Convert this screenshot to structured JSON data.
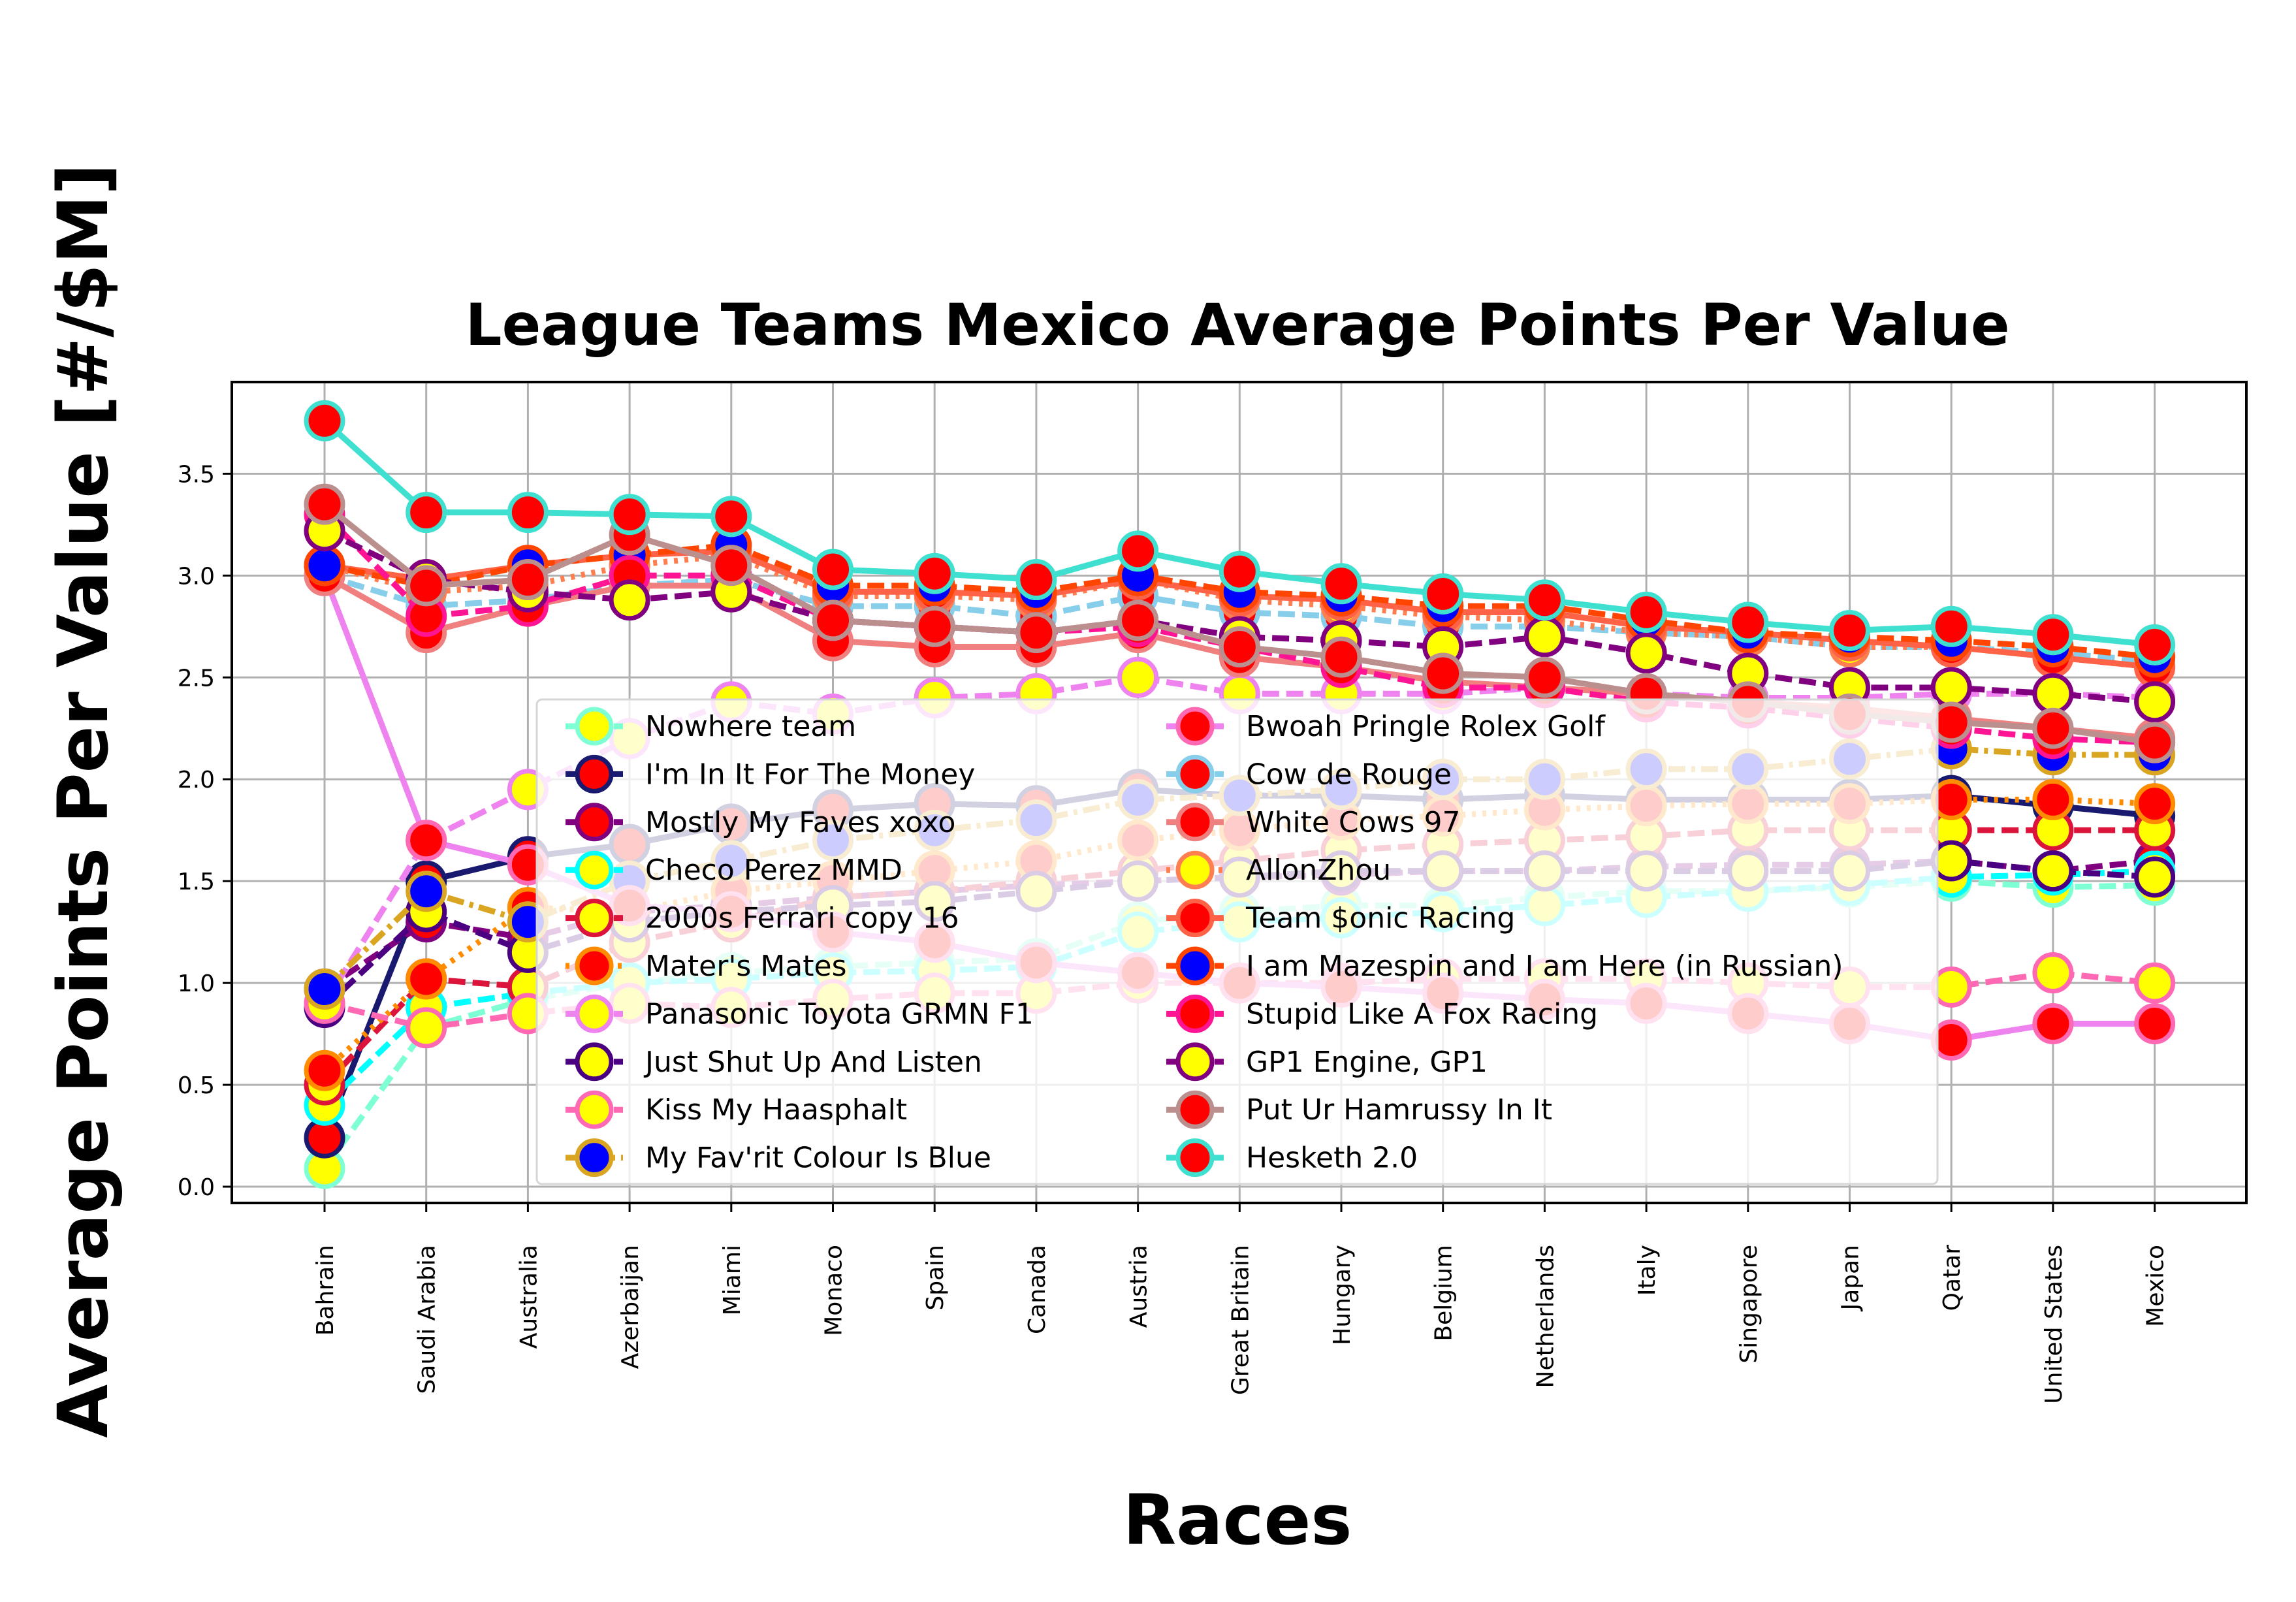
{
  "chart_data": {
    "type": "line",
    "title": "League Teams Mexico Average Points Per Value",
    "xlabel": "Races",
    "ylabel": "Average Points Per Value [#/$M]",
    "categories": [
      "Bahrain",
      "Saudi Arabia",
      "Australia",
      "Azerbaijan",
      "Miami",
      "Monaco",
      "Spain",
      "Canada",
      "Austria",
      "Great Britain",
      "Hungary",
      "Belgium",
      "Netherlands",
      "Italy",
      "Singapore",
      "Japan",
      "Qatar",
      "United States",
      "Mexico"
    ],
    "yticks": [
      "0.0",
      "0.5",
      "1.0",
      "1.5",
      "2.0",
      "2.5",
      "3.0",
      "3.5"
    ],
    "ylim": [
      -0.08,
      3.95
    ],
    "grid": true,
    "legend_location": "center",
    "series": [
      {
        "name": "Nowhere team",
        "line_color": "#7fffd4",
        "line_style": "dashed",
        "marker_face": "#ffff00",
        "marker_edge": "#7fffd4",
        "values": [
          0.09,
          0.78,
          0.92,
          1.0,
          1.05,
          1.08,
          1.1,
          1.12,
          1.3,
          1.35,
          1.38,
          1.38,
          1.42,
          1.45,
          1.45,
          1.47,
          1.5,
          1.47,
          1.48
        ]
      },
      {
        "name": "I'm In It For The Money",
        "line_color": "#191970",
        "line_style": "solid",
        "marker_face": "#ff0000",
        "marker_edge": "#191970",
        "values": [
          0.24,
          1.5,
          1.62,
          1.68,
          1.78,
          1.85,
          1.88,
          1.87,
          1.95,
          1.92,
          1.92,
          1.9,
          1.92,
          1.9,
          1.9,
          1.9,
          1.92,
          1.87,
          1.82
        ]
      },
      {
        "name": "Mostly My Faves xoxo",
        "line_color": "#800080",
        "line_style": "dashed",
        "marker_face": "#ff0000",
        "marker_edge": "#800080",
        "values": [
          0.97,
          1.3,
          1.22,
          1.35,
          1.38,
          1.42,
          1.45,
          1.48,
          1.5,
          1.52,
          1.53,
          1.55,
          1.55,
          1.57,
          1.58,
          1.58,
          1.6,
          1.55,
          1.6
        ]
      },
      {
        "name": "Checo Perez MMD",
        "line_color": "#00ffff",
        "line_style": "dashed",
        "marker_face": "#ffff00",
        "marker_edge": "#00ffff",
        "values": [
          0.4,
          0.88,
          0.95,
          1.0,
          1.02,
          1.05,
          1.06,
          1.08,
          1.25,
          1.3,
          1.32,
          1.35,
          1.38,
          1.42,
          1.45,
          1.48,
          1.52,
          1.53,
          1.55
        ]
      },
      {
        "name": "2000s Ferrari copy 16",
        "line_color": "#dc143c",
        "line_style": "dashed",
        "marker_face": "#ffff00",
        "marker_edge": "#dc143c",
        "values": [
          0.5,
          1.02,
          0.98,
          1.2,
          1.3,
          1.42,
          1.45,
          1.5,
          1.55,
          1.6,
          1.65,
          1.68,
          1.7,
          1.72,
          1.75,
          1.75,
          1.75,
          1.75,
          1.75
        ]
      },
      {
        "name": "Mater's Mates",
        "line_color": "#ff8c00",
        "line_style": "dotted",
        "marker_face": "#ff0000",
        "marker_edge": "#ff8c00",
        "values": [
          0.57,
          1.02,
          1.37,
          1.35,
          1.45,
          1.5,
          1.55,
          1.6,
          1.7,
          1.75,
          1.8,
          1.82,
          1.85,
          1.87,
          1.88,
          1.88,
          1.9,
          1.9,
          1.88
        ]
      },
      {
        "name": "Panasonic Toyota GRMN F1",
        "line_color": "#ee82ee",
        "line_style": "dashed",
        "marker_face": "#ffff00",
        "marker_edge": "#ee82ee",
        "values": [
          0.9,
          1.7,
          1.95,
          2.2,
          2.38,
          2.32,
          2.4,
          2.42,
          2.5,
          2.42,
          2.42,
          2.42,
          2.45,
          2.42,
          2.4,
          2.4,
          2.42,
          2.42,
          2.4
        ]
      },
      {
        "name": "Just Shut Up And Listen",
        "line_color": "#4b0082",
        "line_style": "dashed",
        "marker_face": "#ffff00",
        "marker_edge": "#4b0082",
        "values": [
          0.88,
          1.35,
          1.15,
          1.3,
          1.35,
          1.38,
          1.4,
          1.45,
          1.5,
          1.52,
          1.55,
          1.55,
          1.55,
          1.55,
          1.55,
          1.55,
          1.6,
          1.55,
          1.52
        ]
      },
      {
        "name": "Kiss My Haasphalt",
        "line_color": "#ff69b4",
        "line_style": "dashed",
        "marker_face": "#ffff00",
        "marker_edge": "#ff69b4",
        "values": [
          0.9,
          0.78,
          0.85,
          0.9,
          0.88,
          0.92,
          0.95,
          0.95,
          1.0,
          1.0,
          1.0,
          1.02,
          1.02,
          1.02,
          1.0,
          0.98,
          0.98,
          1.05,
          1.0
        ]
      },
      {
        "name": "My Fav'rit Colour Is Blue",
        "line_color": "#daa520",
        "line_style": "dashdot",
        "marker_face": "#0000ff",
        "marker_edge": "#daa520",
        "values": [
          0.97,
          1.45,
          1.3,
          1.5,
          1.6,
          1.7,
          1.75,
          1.8,
          1.9,
          1.92,
          1.95,
          2.0,
          2.0,
          2.05,
          2.05,
          2.1,
          2.15,
          2.12,
          2.12
        ]
      },
      {
        "name": "Bwoah Pringle Rolex Golf",
        "line_color": "#ee82ee",
        "line_style": "solid",
        "marker_face": "#ff0000",
        "marker_edge": "#ff69b4",
        "values": [
          3.0,
          1.7,
          1.58,
          1.38,
          1.35,
          1.25,
          1.2,
          1.1,
          1.05,
          1.0,
          0.98,
          0.95,
          0.92,
          0.9,
          0.85,
          0.8,
          0.72,
          0.8,
          0.8
        ]
      },
      {
        "name": "Cow de Rouge",
        "line_color": "#87ceeb",
        "line_style": "dashed",
        "marker_face": "#ff0000",
        "marker_edge": "#87ceeb",
        "values": [
          3.0,
          2.85,
          2.88,
          2.95,
          2.98,
          2.85,
          2.85,
          2.8,
          2.9,
          2.82,
          2.8,
          2.75,
          2.75,
          2.72,
          2.7,
          2.65,
          2.65,
          2.62,
          2.58
        ]
      },
      {
        "name": "White Cows 97",
        "line_color": "#f08080",
        "line_style": "solid",
        "marker_face": "#ff0000",
        "marker_edge": "#f08080",
        "values": [
          3.0,
          2.72,
          2.85,
          2.95,
          2.95,
          2.68,
          2.65,
          2.65,
          2.72,
          2.6,
          2.55,
          2.48,
          2.45,
          2.42,
          2.38,
          2.35,
          2.3,
          2.25,
          2.2
        ]
      },
      {
        "name": "AllonZhou",
        "line_color": "#ff7f50",
        "line_style": "dotted",
        "marker_face": "#ffff00",
        "marker_edge": "#ff7f50",
        "values": [
          3.05,
          2.92,
          2.95,
          3.05,
          3.1,
          2.9,
          2.9,
          2.88,
          2.98,
          2.88,
          2.85,
          2.8,
          2.78,
          2.72,
          2.7,
          2.65,
          2.65,
          2.6,
          2.55
        ]
      },
      {
        "name": "Team $onic Racing",
        "line_color": "#ff6347",
        "line_style": "solid",
        "marker_face": "#ff0000",
        "marker_edge": "#ff6347",
        "values": [
          3.05,
          2.98,
          3.05,
          3.1,
          3.12,
          2.92,
          2.92,
          2.9,
          2.98,
          2.9,
          2.88,
          2.82,
          2.82,
          2.75,
          2.72,
          2.68,
          2.65,
          2.6,
          2.55
        ]
      },
      {
        "name": "I am Mazespin and I am Here (in Russian)",
        "line_color": "#ff4500",
        "line_style": "dashed",
        "marker_face": "#0000ff",
        "marker_edge": "#ff4500",
        "values": [
          3.05,
          2.95,
          3.05,
          3.1,
          3.15,
          2.95,
          2.95,
          2.92,
          3.0,
          2.92,
          2.9,
          2.85,
          2.85,
          2.78,
          2.72,
          2.7,
          2.68,
          2.65,
          2.6
        ]
      },
      {
        "name": "Stupid Like A Fox Racing",
        "line_color": "#ff1493",
        "line_style": "dashed",
        "marker_face": "#ff0000",
        "marker_edge": "#ff1493",
        "values": [
          3.3,
          2.8,
          2.85,
          3.0,
          3.0,
          2.78,
          2.75,
          2.72,
          2.75,
          2.65,
          2.55,
          2.45,
          2.45,
          2.38,
          2.35,
          2.3,
          2.25,
          2.2,
          2.18
        ]
      },
      {
        "name": "GP1 Engine, GP1",
        "line_color": "#800080",
        "line_style": "dashed",
        "marker_face": "#ffff00",
        "marker_edge": "#800080",
        "values": [
          3.22,
          2.98,
          2.92,
          2.88,
          2.92,
          2.78,
          2.75,
          2.72,
          2.78,
          2.7,
          2.68,
          2.65,
          2.7,
          2.62,
          2.52,
          2.45,
          2.45,
          2.42,
          2.38
        ]
      },
      {
        "name": "Put Ur Hamrussy In It",
        "line_color": "#bc8f8f",
        "line_style": "solid",
        "marker_face": "#ff0000",
        "marker_edge": "#bc8f8f",
        "values": [
          3.35,
          2.95,
          2.98,
          3.2,
          3.05,
          2.78,
          2.75,
          2.72,
          2.78,
          2.65,
          2.6,
          2.52,
          2.5,
          2.42,
          2.38,
          2.32,
          2.28,
          2.25,
          2.18
        ]
      },
      {
        "name": "Hesketh 2.0",
        "line_color": "#40e0d0",
        "line_style": "solid",
        "marker_face": "#ff0000",
        "marker_edge": "#40e0d0",
        "values": [
          3.76,
          3.31,
          3.31,
          3.3,
          3.29,
          3.03,
          3.01,
          2.98,
          3.12,
          3.02,
          2.96,
          2.91,
          2.88,
          2.82,
          2.77,
          2.73,
          2.75,
          2.71,
          2.66
        ]
      }
    ]
  }
}
